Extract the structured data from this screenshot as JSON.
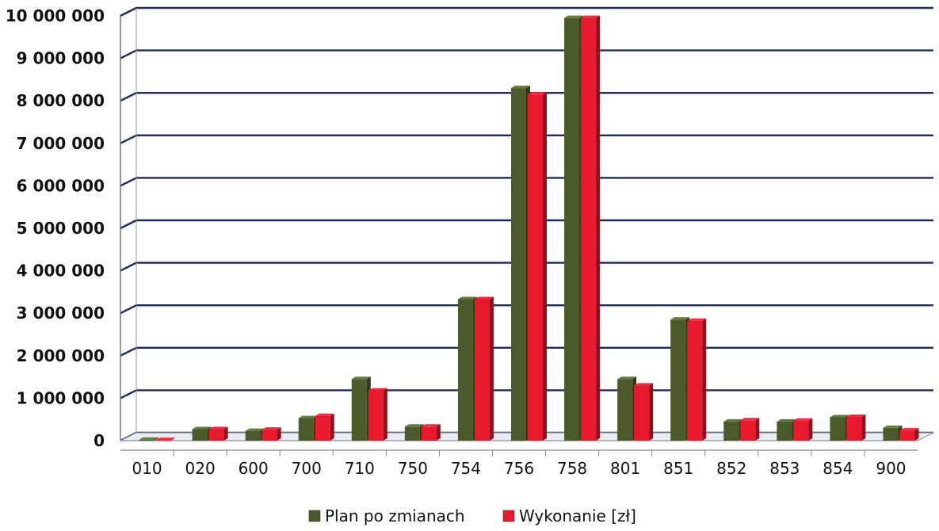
{
  "chart_data": {
    "type": "bar",
    "categories": [
      "010",
      "020",
      "600",
      "700",
      "710",
      "750",
      "754",
      "756",
      "758",
      "801",
      "851",
      "852",
      "853",
      "854",
      "900"
    ],
    "series": [
      {
        "name": "Plan po zmianach",
        "color": "#4a5a2a",
        "values": [
          20000,
          270000,
          230000,
          530000,
          1450000,
          330000,
          3330000,
          8300000,
          9950000,
          1450000,
          2850000,
          450000,
          450000,
          550000,
          300000
        ]
      },
      {
        "name": "Wykonanie [zł]",
        "color": "#e8192c",
        "values": [
          15000,
          270000,
          260000,
          580000,
          1180000,
          330000,
          3330000,
          8150000,
          9950000,
          1300000,
          2820000,
          480000,
          470000,
          560000,
          240000
        ]
      }
    ],
    "ytick_labels": [
      "0",
      "1 000 000",
      "2 000 000",
      "3 000 000",
      "4 000 000",
      "5 000 000",
      "6 000 000",
      "7 000 000",
      "8 000 000",
      "9 000 000",
      "10 000 000"
    ],
    "ylim": [
      0,
      10000000
    ],
    "grid": true,
    "legend_position": "bottom"
  }
}
